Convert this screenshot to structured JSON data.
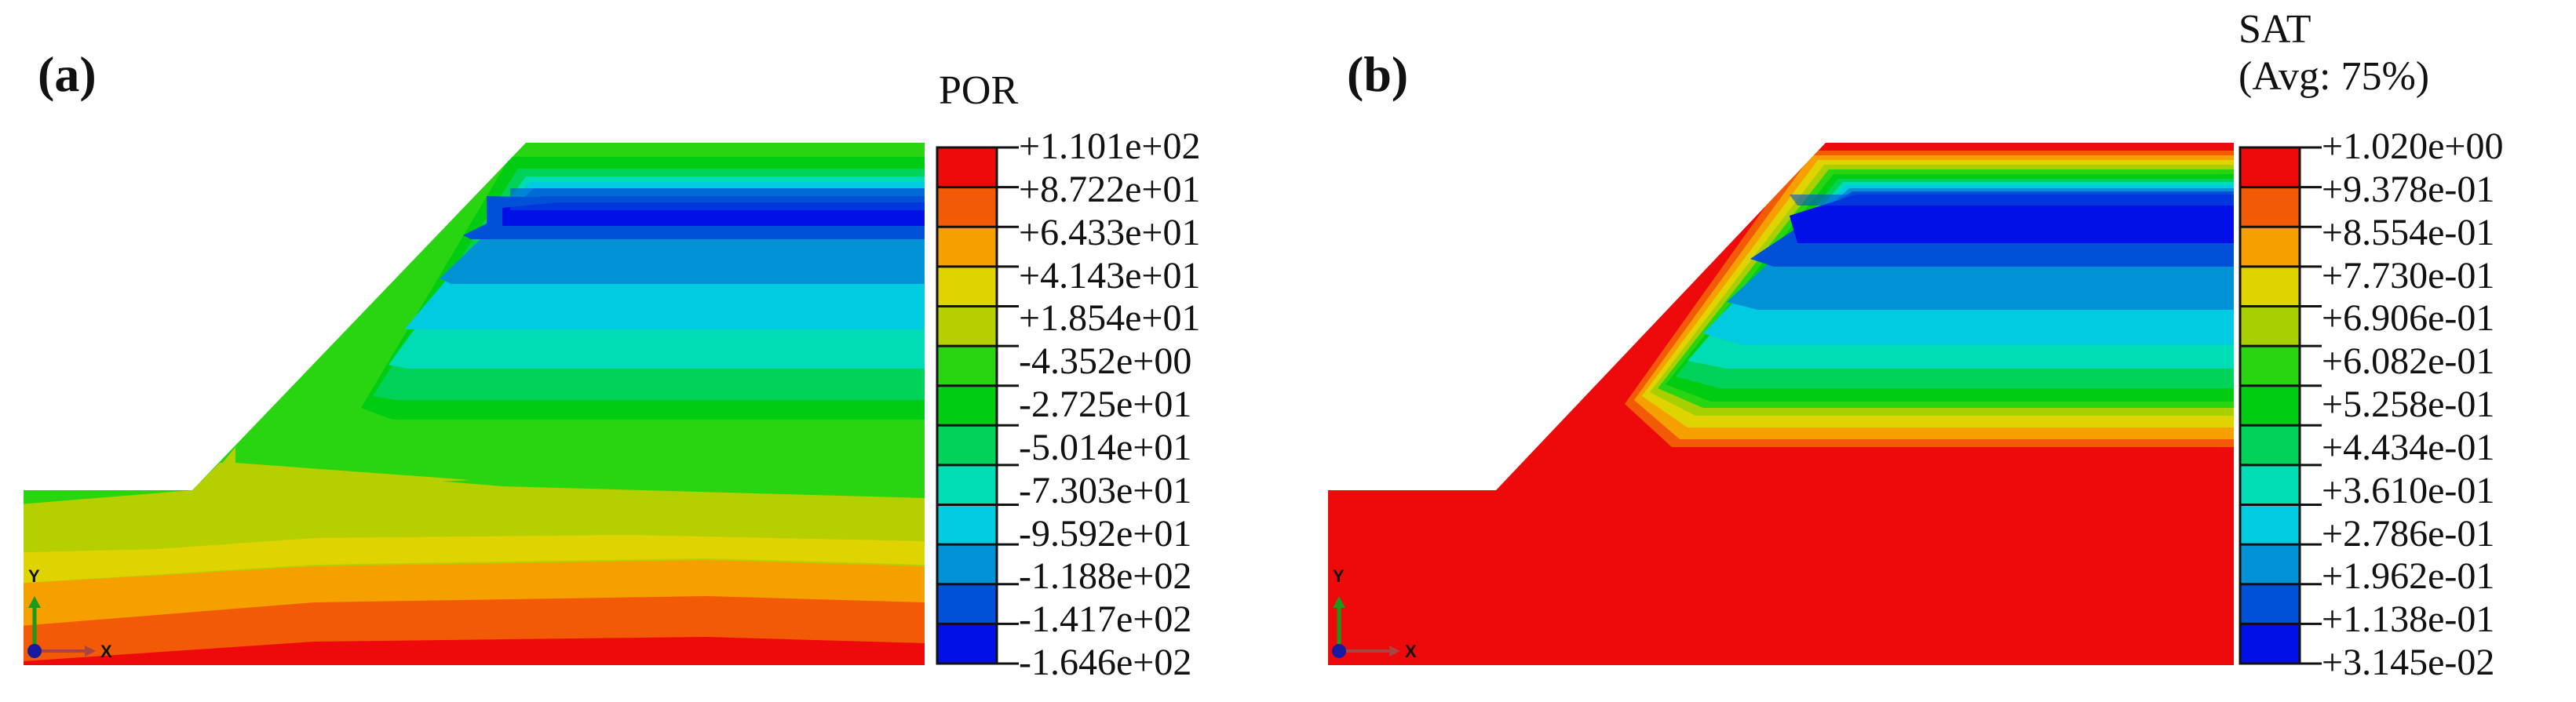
{
  "panels": [
    {
      "label": "(a)",
      "legend_title_lines": [
        "POR"
      ],
      "legend_ticks": [
        "+1.101e+02",
        "+8.722e+01",
        "+6.433e+01",
        "+4.143e+01",
        "+1.854e+01",
        "-4.352e+00",
        "-2.725e+01",
        "-5.014e+01",
        "-7.303e+01",
        "-9.592e+01",
        "-1.188e+02",
        "-1.417e+02",
        "-1.646e+02"
      ],
      "legend_colors": [
        "#ee0a0a",
        "#f25a06",
        "#f6a000",
        "#dfd400",
        "#b6cf00",
        "#28d510",
        "#00cd12",
        "#00d25a",
        "#00dcb3",
        "#00cbe0",
        "#0092d5",
        "#0050d8",
        "#0010e6"
      ],
      "axes": {
        "y": "Y",
        "x": "X"
      }
    },
    {
      "label": "(b)",
      "legend_title_lines": [
        "SAT",
        "(Avg: 75%)"
      ],
      "legend_ticks": [
        "+1.020e+00",
        "+9.378e-01",
        "+8.554e-01",
        "+7.730e-01",
        "+6.906e-01",
        "+6.082e-01",
        "+5.258e-01",
        "+4.434e-01",
        "+3.610e-01",
        "+2.786e-01",
        "+1.962e-01",
        "+1.138e-01",
        "+3.145e-02"
      ],
      "legend_colors": [
        "#ee0a0a",
        "#f25a06",
        "#f6a000",
        "#dfd400",
        "#a8d000",
        "#28d510",
        "#00cd12",
        "#00d25a",
        "#00dcb3",
        "#00cbe0",
        "#0092d5",
        "#0050d8",
        "#0010e6"
      ],
      "axes": {
        "y": "Y",
        "x": "X"
      }
    }
  ]
}
